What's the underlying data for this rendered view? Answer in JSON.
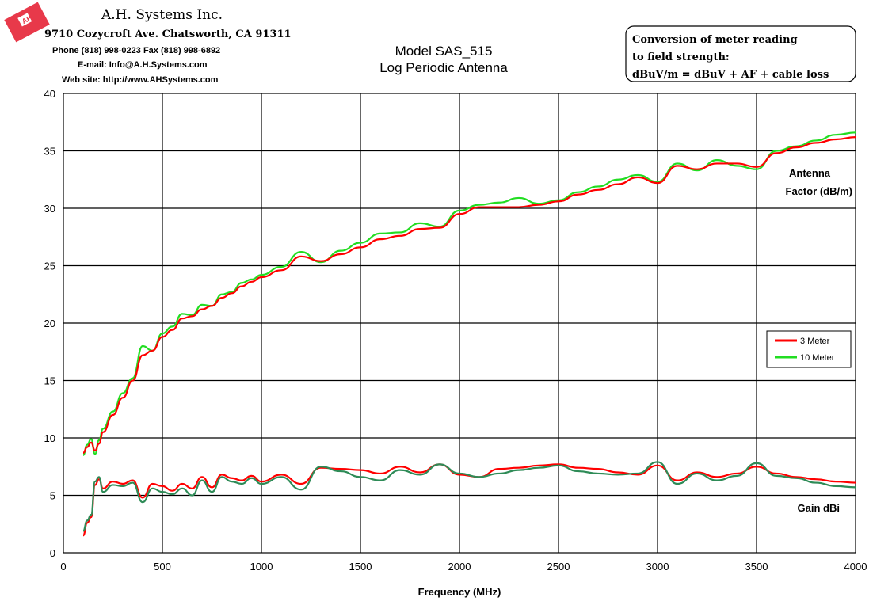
{
  "header": {
    "company": "A.H. Systems Inc.",
    "address": "9710 Cozycroft Ave. Chatsworth, CA 91311",
    "phone": "Phone (818) 998-0223 Fax (818) 998-6892",
    "email": "E-mail:  Info@A.H.Systems.com",
    "website": "Web site:  http://www.AHSystems.com",
    "logo_icon": "company-logo-icon"
  },
  "note": {
    "line1": "Conversion of meter reading",
    "line2": "to field strength:",
    "line3": "dBuV/m = dBuV + AF + cable loss"
  },
  "colors": {
    "series_3m": "#ff0000",
    "series_10m": "#22dd22",
    "gain_3m": "#ff0000",
    "gain_10m": "#2e8b57",
    "grid": "#000000",
    "logo": "#e8394a"
  },
  "chart_data": {
    "type": "line",
    "title": "Model SAS_515",
    "subtitle": "Log Periodic Antenna",
    "xlabel": "Frequency (MHz)",
    "ylabel": "",
    "xlim": [
      0,
      4000
    ],
    "ylim": [
      0,
      40
    ],
    "x_ticks": [
      0,
      500,
      1000,
      1500,
      2000,
      2500,
      3000,
      3500,
      4000
    ],
    "y_ticks": [
      0,
      5,
      10,
      15,
      20,
      25,
      30,
      35,
      40
    ],
    "grid": true,
    "legend_position": "right",
    "annotations": {
      "antenna_factor_line1": "Antenna",
      "antenna_factor_line2": "Factor (dB/m)",
      "gain": "Gain dBi"
    },
    "legend": [
      "3 Meter",
      "10 Meter"
    ],
    "series": [
      {
        "name": "3 Meter",
        "group": "antenna_factor",
        "x": [
          100,
          120,
          140,
          160,
          180,
          200,
          250,
          300,
          350,
          400,
          450,
          500,
          550,
          600,
          650,
          700,
          750,
          800,
          850,
          900,
          950,
          1000,
          1100,
          1200,
          1300,
          1400,
          1500,
          1600,
          1700,
          1800,
          1900,
          2000,
          2100,
          2200,
          2300,
          2400,
          2500,
          2600,
          2700,
          2800,
          2900,
          3000,
          3100,
          3200,
          3300,
          3400,
          3500,
          3600,
          3700,
          3800,
          3900,
          4000
        ],
        "y": [
          8.7,
          9.2,
          9.6,
          8.9,
          9.5,
          10.5,
          12.0,
          13.5,
          15.0,
          17.2,
          17.6,
          18.8,
          19.4,
          20.4,
          20.6,
          21.2,
          21.5,
          22.2,
          22.6,
          23.2,
          23.6,
          24.0,
          24.6,
          25.8,
          25.4,
          26.0,
          26.6,
          27.3,
          27.6,
          28.2,
          28.3,
          29.5,
          30.1,
          30.1,
          30.1,
          30.3,
          30.6,
          31.2,
          31.6,
          32.1,
          32.7,
          32.2,
          33.7,
          33.4,
          33.9,
          33.9,
          33.6,
          34.8,
          35.3,
          35.7,
          36.0,
          36.2
        ]
      },
      {
        "name": "10 Meter",
        "group": "antenna_factor",
        "x": [
          100,
          120,
          140,
          160,
          180,
          200,
          250,
          300,
          350,
          400,
          450,
          500,
          550,
          600,
          650,
          700,
          750,
          800,
          850,
          900,
          950,
          1000,
          1100,
          1200,
          1300,
          1400,
          1500,
          1600,
          1700,
          1800,
          1900,
          2000,
          2100,
          2200,
          2300,
          2400,
          2500,
          2600,
          2700,
          2800,
          2900,
          3000,
          3100,
          3200,
          3300,
          3400,
          3500,
          3600,
          3700,
          3800,
          3900,
          4000
        ],
        "y": [
          8.5,
          9.4,
          9.9,
          8.6,
          9.8,
          10.8,
          12.3,
          13.9,
          15.2,
          18.0,
          17.6,
          19.1,
          19.7,
          20.8,
          20.7,
          21.6,
          21.5,
          22.5,
          22.7,
          23.5,
          23.8,
          24.2,
          24.9,
          26.2,
          25.3,
          26.3,
          27.0,
          27.8,
          27.9,
          28.7,
          28.4,
          29.8,
          30.3,
          30.5,
          30.9,
          30.4,
          30.7,
          31.4,
          31.9,
          32.5,
          32.9,
          32.3,
          33.9,
          33.3,
          34.2,
          33.7,
          33.4,
          35.0,
          35.4,
          35.9,
          36.4,
          36.6
        ]
      },
      {
        "name": "3 Meter",
        "group": "gain",
        "x": [
          100,
          120,
          140,
          160,
          180,
          200,
          250,
          300,
          350,
          400,
          450,
          500,
          550,
          600,
          650,
          700,
          750,
          800,
          850,
          900,
          950,
          1000,
          1100,
          1200,
          1300,
          1400,
          1500,
          1600,
          1700,
          1800,
          1900,
          2000,
          2100,
          2200,
          2300,
          2400,
          2500,
          2600,
          2700,
          2800,
          2900,
          3000,
          3100,
          3200,
          3300,
          3400,
          3500,
          3600,
          3700,
          3800,
          3900,
          4000
        ],
        "y": [
          1.5,
          2.6,
          3.1,
          5.9,
          6.4,
          5.6,
          6.2,
          6.0,
          6.3,
          4.8,
          6.0,
          5.8,
          5.4,
          6.0,
          5.6,
          6.6,
          5.7,
          6.8,
          6.5,
          6.3,
          6.7,
          6.2,
          6.8,
          6.0,
          7.4,
          7.3,
          7.2,
          6.9,
          7.5,
          7.0,
          7.7,
          6.8,
          6.6,
          7.3,
          7.4,
          7.6,
          7.7,
          7.4,
          7.3,
          7.0,
          6.8,
          7.6,
          6.3,
          7.0,
          6.6,
          6.9,
          7.5,
          6.9,
          6.6,
          6.4,
          6.2,
          6.1
        ]
      },
      {
        "name": "10 Meter",
        "group": "gain",
        "x": [
          100,
          120,
          140,
          160,
          180,
          200,
          250,
          300,
          350,
          400,
          450,
          500,
          550,
          600,
          650,
          700,
          750,
          800,
          850,
          900,
          950,
          1000,
          1100,
          1200,
          1300,
          1400,
          1500,
          1600,
          1700,
          1800,
          1900,
          2000,
          2100,
          2200,
          2300,
          2400,
          2500,
          2600,
          2700,
          2800,
          2900,
          3000,
          3100,
          3200,
          3300,
          3400,
          3500,
          3600,
          3700,
          3800,
          3900,
          4000
        ],
        "y": [
          1.9,
          2.8,
          3.3,
          6.2,
          6.6,
          5.3,
          5.9,
          5.8,
          6.1,
          4.4,
          5.6,
          5.3,
          5.1,
          5.6,
          5.0,
          6.3,
          5.3,
          6.6,
          6.2,
          6.0,
          6.5,
          6.0,
          6.6,
          5.5,
          7.5,
          7.1,
          6.6,
          6.3,
          7.2,
          6.8,
          7.7,
          6.9,
          6.6,
          6.9,
          7.2,
          7.4,
          7.6,
          7.1,
          6.9,
          6.8,
          6.9,
          7.9,
          6.0,
          6.9,
          6.3,
          6.7,
          7.8,
          6.7,
          6.5,
          6.1,
          5.8,
          5.7
        ]
      }
    ]
  }
}
